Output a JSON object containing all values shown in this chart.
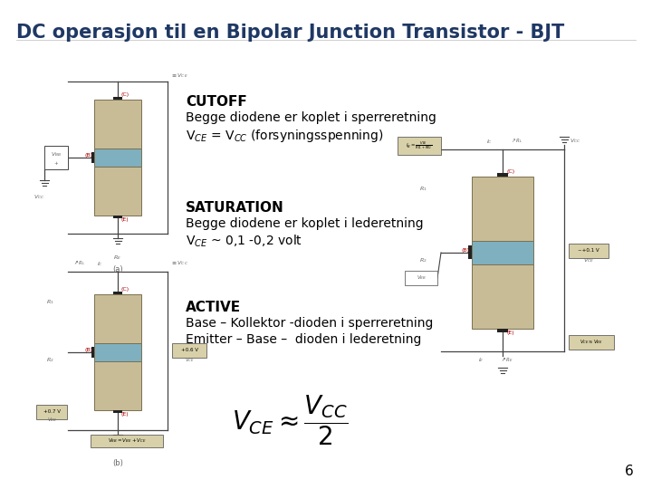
{
  "title": "DC operasjon til en Bipolar Junction Transistor - BJT",
  "title_color": "#1F3864",
  "title_fontsize": 15,
  "bg_color": "#FFFFFF",
  "page_number": "6",
  "cutoff_label": "CUTOFF",
  "cutoff_line1": "Begge diodene er koplet i sperreretning",
  "cutoff_line2": "V$_{CE}$ = V$_{CC}$ (forsyningsspenning)",
  "saturation_label": "SATURATION",
  "saturation_line1": "Begge diodene er koplet i lederetning",
  "saturation_line2": "V$_{CE}$ ~ 0,1 -0,2 volt",
  "active_label": "ACTIVE",
  "active_line1": "Base – Kollektor -dioden i sperreretning",
  "active_line2": "Emitter – Base –  dioden i lederetning",
  "transistor_tan": "#C8BC96",
  "transistor_blue": "#7EB0C0",
  "transistor_border": "#7A7050",
  "circuit_line_color": "#444444",
  "label_color": "#666666",
  "box_label_color": "#555555",
  "vce_box_bg": "#D8D0A8",
  "vbb_box_bg": "#FFFFFF"
}
